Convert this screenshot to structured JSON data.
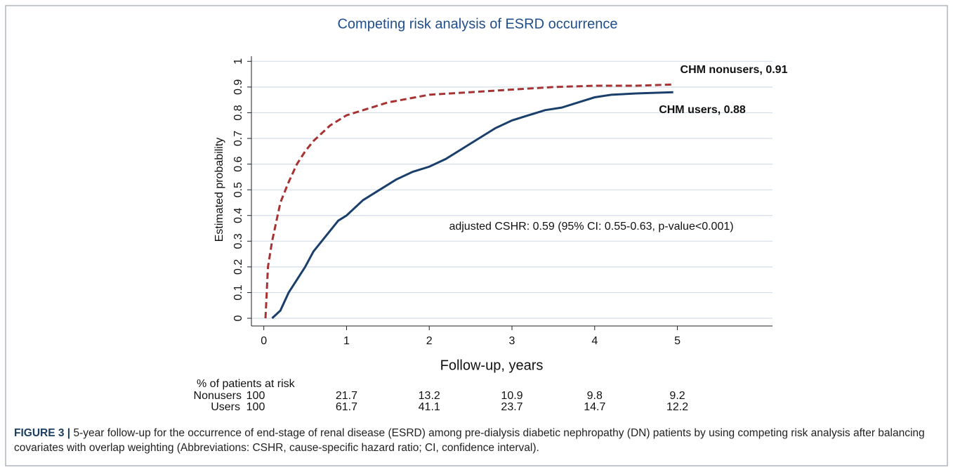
{
  "chart_data": {
    "type": "line",
    "title": "Competing risk analysis of ESRD occurrence",
    "xlabel": "Follow-up, years",
    "ylabel": "Estimated probability",
    "xlim": [
      -0.15,
      6.15
    ],
    "xticks": [
      0,
      1,
      2,
      3,
      4,
      5
    ],
    "ylim": [
      -0.03,
      1.02
    ],
    "yticks": [
      0,
      0.1,
      0.2,
      0.3,
      0.4,
      0.5,
      0.6,
      0.7,
      0.8,
      0.9,
      1
    ],
    "grid": true,
    "series": [
      {
        "name": "CHM nonusers, 0.91",
        "color": "#a83232",
        "dash": true,
        "x": [
          0.02,
          0.05,
          0.1,
          0.2,
          0.3,
          0.4,
          0.5,
          0.6,
          0.7,
          0.8,
          1.0,
          1.2,
          1.5,
          2.0,
          2.5,
          3.0,
          3.5,
          4.0,
          4.5,
          4.95
        ],
        "values": [
          0.0,
          0.2,
          0.3,
          0.45,
          0.53,
          0.6,
          0.65,
          0.69,
          0.72,
          0.75,
          0.79,
          0.81,
          0.84,
          0.87,
          0.88,
          0.89,
          0.9,
          0.905,
          0.905,
          0.91
        ]
      },
      {
        "name": "CHM users, 0.88",
        "color": "#1a3f6b",
        "dash": false,
        "x": [
          0.1,
          0.2,
          0.3,
          0.4,
          0.5,
          0.6,
          0.7,
          0.8,
          0.9,
          1.0,
          1.2,
          1.4,
          1.6,
          1.8,
          2.0,
          2.2,
          2.4,
          2.6,
          2.8,
          3.0,
          3.2,
          3.4,
          3.6,
          3.8,
          4.0,
          4.2,
          4.5,
          4.95
        ],
        "values": [
          0.0,
          0.03,
          0.1,
          0.15,
          0.2,
          0.26,
          0.3,
          0.34,
          0.38,
          0.4,
          0.46,
          0.5,
          0.54,
          0.57,
          0.59,
          0.62,
          0.66,
          0.7,
          0.74,
          0.77,
          0.79,
          0.81,
          0.82,
          0.84,
          0.86,
          0.87,
          0.875,
          0.88
        ]
      }
    ],
    "annotation": "adjusted CSHR: 0.59 (95% CI: 0.55-0.63, p-value<0.001)",
    "risk_table": {
      "title": "% of patients at risk",
      "rows": [
        {
          "name": "Nonusers",
          "values": [
            100,
            21.7,
            13.2,
            10.9,
            9.8,
            9.2
          ]
        },
        {
          "name": "Users",
          "values": [
            100,
            61.7,
            41.1,
            23.7,
            14.7,
            12.2
          ]
        }
      ]
    }
  },
  "caption": {
    "label": "FIGURE 3 |",
    "text": "5-year follow-up for the occurrence of end-stage of renal disease (ESRD) among pre-dialysis diabetic nephropathy (DN) patients by using competing risk analysis after balancing covariates with overlap weighting (Abbreviations: CSHR, cause-specific hazard ratio; CI, confidence interval)."
  }
}
